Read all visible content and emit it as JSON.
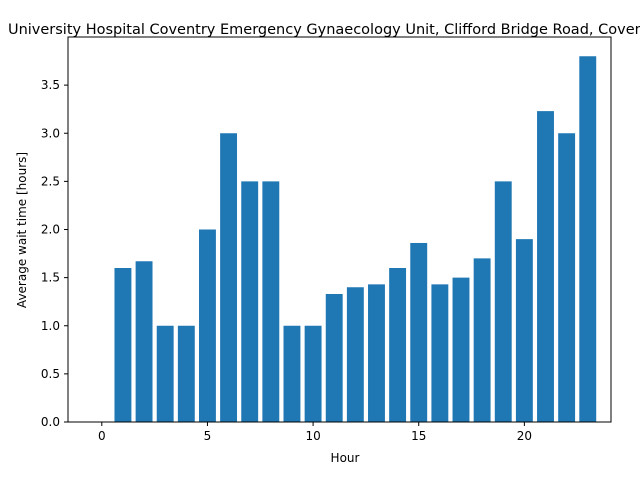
{
  "chart_data": {
    "type": "bar",
    "title": "University Hospital Coventry Emergency Gynaecology Unit, Clifford Bridge Road, Coventry",
    "xlabel": "Hour",
    "ylabel": "Average wait time [hours]",
    "x": [
      0,
      1,
      2,
      3,
      4,
      5,
      6,
      7,
      8,
      9,
      10,
      11,
      12,
      13,
      14,
      15,
      16,
      17,
      18,
      19,
      20,
      21,
      22,
      23
    ],
    "values": [
      0,
      1.6,
      1.67,
      1.0,
      1.0,
      2.0,
      3.0,
      2.5,
      2.5,
      1.0,
      1.0,
      1.33,
      1.4,
      1.43,
      1.6,
      1.86,
      1.43,
      1.5,
      1.7,
      2.5,
      1.9,
      3.23,
      3.0,
      3.8
    ],
    "xlim": [
      -1.6,
      24.1
    ],
    "ylim": [
      0,
      4.0
    ],
    "xticks": [
      0,
      5,
      10,
      15,
      20
    ],
    "yticks": [
      0.0,
      0.5,
      1.0,
      1.5,
      2.0,
      2.5,
      3.0,
      3.5
    ],
    "bar_color": "#1f77b4",
    "grid": false,
    "legend": "none"
  }
}
